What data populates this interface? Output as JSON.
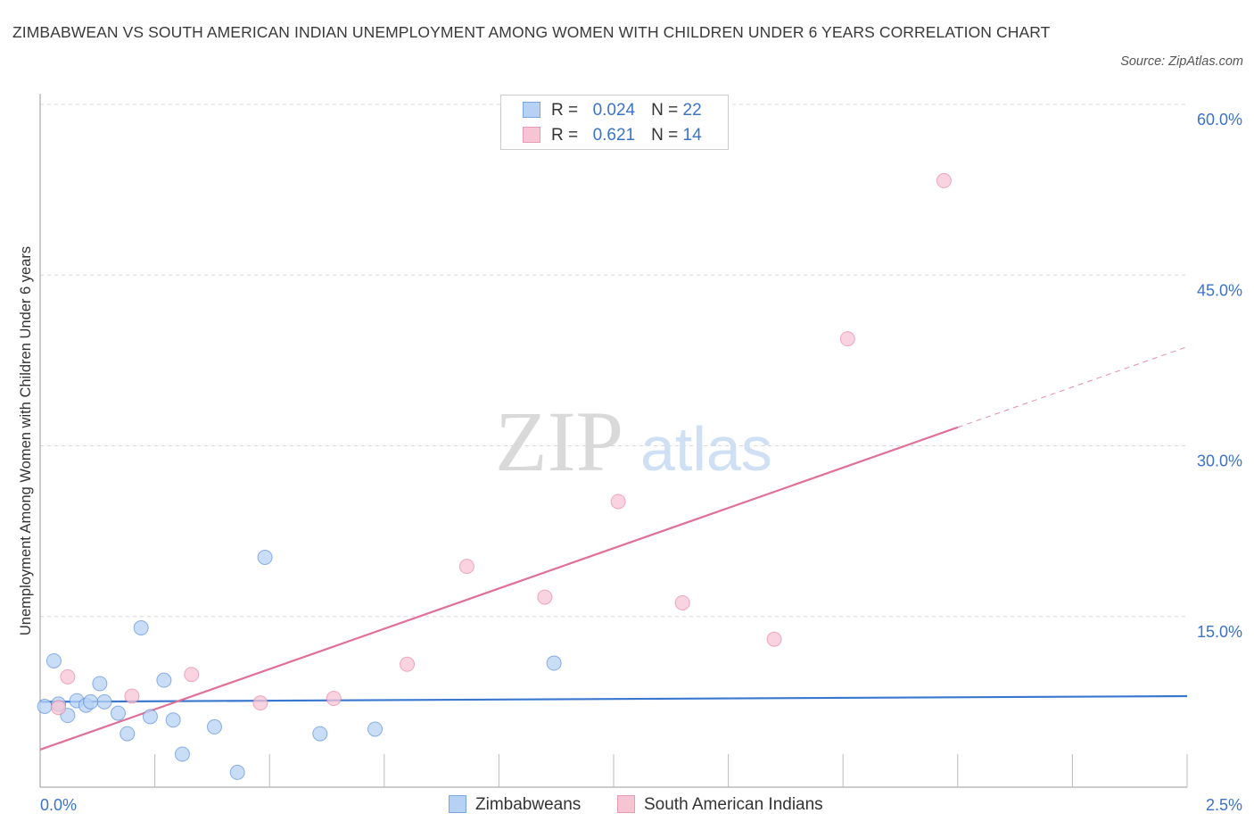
{
  "chart_data": {
    "type": "scatter",
    "title": "ZIMBABWEAN VS SOUTH AMERICAN INDIAN UNEMPLOYMENT AMONG WOMEN WITH CHILDREN UNDER 6 YEARS CORRELATION CHART",
    "source": "Source: ZipAtlas.com",
    "xlabel": "",
    "ylabel": "Unemployment Among Women with Children Under 6 years",
    "xlim": [
      0,
      2.5
    ],
    "ylim": [
      0,
      60
    ],
    "x_tick_labels": [
      "0.0%",
      "2.5%"
    ],
    "y_ticks": [
      15,
      30,
      45,
      60
    ],
    "y_tick_labels": [
      "15.0%",
      "30.0%",
      "45.0%",
      "60.0%"
    ],
    "grid": true,
    "watermark": "ZIPatlas",
    "legend": [
      {
        "name": "Zimbabweans",
        "r_label": "R =",
        "r_value": "0.024",
        "n_label": "N =",
        "n_value": "22"
      },
      {
        "name": "South American Indians",
        "r_label": "R =",
        "r_value": "0.621",
        "n_label": "N =",
        "n_value": "14"
      }
    ],
    "series": [
      {
        "name": "Zimbabweans",
        "color": "#3a78d0",
        "fill": "#b7d1f4",
        "x": [
          0.01,
          0.04,
          0.06,
          0.08,
          0.1,
          0.13,
          0.14,
          0.17,
          0.19,
          0.22,
          0.24,
          0.27,
          0.29,
          0.31,
          0.38,
          0.43,
          0.49,
          0.61,
          0.73,
          1.12,
          0.11,
          0.03
        ],
        "y": [
          7.1,
          7.3,
          6.3,
          7.6,
          7.2,
          9.1,
          7.5,
          6.5,
          4.7,
          14.0,
          6.2,
          9.4,
          5.9,
          2.9,
          5.3,
          1.3,
          20.2,
          4.7,
          5.1,
          10.9,
          7.5,
          11.1
        ],
        "trend": {
          "x0": 0,
          "y0": 7.5,
          "x1": 2.5,
          "y1": 8.0
        }
      },
      {
        "name": "South American Indians",
        "color": "#e07097",
        "fill": "#f7c4d4",
        "x": [
          0.04,
          0.2,
          0.33,
          0.48,
          0.64,
          0.8,
          0.93,
          1.1,
          1.26,
          1.4,
          1.6,
          1.76,
          1.97,
          0.06
        ],
        "y": [
          7.0,
          8.0,
          9.9,
          7.4,
          7.8,
          10.8,
          19.4,
          16.7,
          25.1,
          16.2,
          13.0,
          39.4,
          53.3,
          9.7
        ],
        "trend": {
          "x0": 0,
          "y0": 3.3,
          "x1": 2.5,
          "y1": 38.7,
          "solid_until": 2.0
        }
      }
    ]
  }
}
